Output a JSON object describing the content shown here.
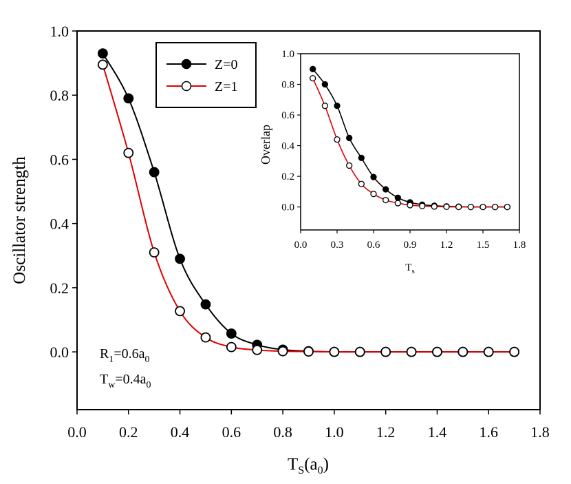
{
  "chart_data": [
    {
      "type": "line",
      "ylabel": "Oscillator strength",
      "xlabel_main": "T",
      "xlabel_sub": "S",
      "xlabel_paren_open": "(a",
      "xlabel_paren_sub": "0",
      "xlabel_paren_close": ")",
      "xlim": [
        0.0,
        1.8
      ],
      "ylim": [
        -0.18,
        1.0
      ],
      "xticks": [
        "0.0",
        "0.2",
        "0.4",
        "0.6",
        "0.8",
        "1.0",
        "1.2",
        "1.4",
        "1.6",
        "1.8"
      ],
      "yticks": [
        "0.0",
        "0.2",
        "0.4",
        "0.6",
        "0.8",
        "1.0"
      ],
      "series": [
        {
          "name": "Z=0",
          "color": "#000000",
          "marker": "filled-circle",
          "x": [
            0.1,
            0.2,
            0.3,
            0.4,
            0.5,
            0.6,
            0.7,
            0.8,
            0.9,
            1.0,
            1.1,
            1.2,
            1.3,
            1.4,
            1.5,
            1.6,
            1.7
          ],
          "y": [
            0.93,
            0.79,
            0.56,
            0.29,
            0.148,
            0.057,
            0.022,
            0.007,
            0.002,
            0.0,
            0.0,
            0.0,
            0.0,
            0.0,
            0.0,
            0.0,
            0.0
          ]
        },
        {
          "name": "Z=1",
          "color": "#e00000",
          "marker": "open-circle",
          "x": [
            0.1,
            0.2,
            0.3,
            0.4,
            0.5,
            0.6,
            0.7,
            0.8,
            0.9,
            1.0,
            1.1,
            1.2,
            1.3,
            1.4,
            1.5,
            1.6,
            1.7
          ],
          "y": [
            0.895,
            0.62,
            0.31,
            0.127,
            0.045,
            0.015,
            0.006,
            0.002,
            0.001,
            0.0,
            0.0,
            0.0,
            0.0,
            0.0,
            0.0,
            0.0,
            0.0
          ]
        }
      ],
      "annotations": {
        "r1_main": "R",
        "r1_sub": "1",
        "r1_rest": "=0.6a",
        "r1_sub2": "0",
        "tw_main": "T",
        "tw_sub": "w",
        "tw_rest": "=0.4a",
        "tw_sub2": "0"
      },
      "legend": {
        "position": "top-center"
      }
    },
    {
      "type": "line",
      "role": "inset",
      "ylabel": "Overlap",
      "xlabel_main": "T",
      "xlabel_sub": "s",
      "xlim": [
        0.0,
        1.8
      ],
      "ylim": [
        -0.15,
        1.0
      ],
      "xticks": [
        "0.0",
        "0.3",
        "0.6",
        "0.9",
        "1.2",
        "1.5",
        "1.8"
      ],
      "yticks": [
        "0.0",
        "0.2",
        "0.4",
        "0.6",
        "0.8",
        "1.0"
      ],
      "series": [
        {
          "name": "Z=0",
          "color": "#000000",
          "marker": "filled-circle",
          "x": [
            0.1,
            0.2,
            0.3,
            0.4,
            0.5,
            0.6,
            0.7,
            0.8,
            0.9,
            1.0,
            1.1,
            1.2,
            1.3,
            1.4,
            1.5,
            1.6,
            1.7
          ],
          "y": [
            0.9,
            0.8,
            0.66,
            0.45,
            0.32,
            0.195,
            0.115,
            0.06,
            0.03,
            0.015,
            0.008,
            0.004,
            0.002,
            0.0,
            0.0,
            0.0,
            0.0
          ]
        },
        {
          "name": "Z=1",
          "color": "#e00000",
          "marker": "open-circle",
          "x": [
            0.1,
            0.2,
            0.3,
            0.4,
            0.5,
            0.6,
            0.7,
            0.8,
            0.9,
            1.0,
            1.1,
            1.2,
            1.3,
            1.4,
            1.5,
            1.6,
            1.7
          ],
          "y": [
            0.84,
            0.66,
            0.44,
            0.27,
            0.15,
            0.085,
            0.045,
            0.025,
            0.012,
            0.006,
            0.003,
            0.001,
            0.0,
            0.0,
            0.0,
            0.0,
            0.0
          ]
        }
      ]
    }
  ]
}
